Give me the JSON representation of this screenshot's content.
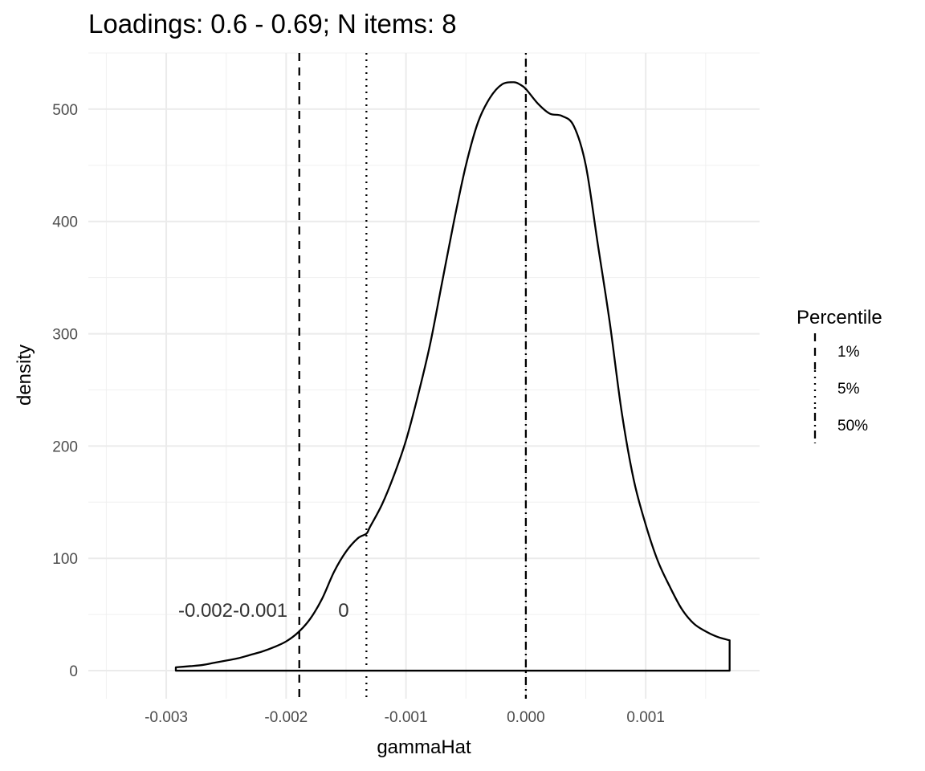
{
  "chart_data": {
    "type": "area",
    "title": "Loadings: 0.6 - 0.69; N items: 8",
    "xlabel": "gammaHat",
    "ylabel": "density",
    "xlim": [
      -0.00365,
      0.00195
    ],
    "ylim": [
      -25,
      550
    ],
    "x_ticks": [
      -0.003,
      -0.002,
      -0.001,
      0.0,
      0.001
    ],
    "x_tick_labels": [
      "-0.003",
      "-0.002",
      "-0.001",
      "0.000",
      "0.001"
    ],
    "y_ticks": [
      0,
      100,
      200,
      300,
      400,
      500
    ],
    "y_tick_labels": [
      "0",
      "100",
      "200",
      "300",
      "400",
      "500"
    ],
    "grid": true,
    "series": [
      {
        "x": [
          -0.00292,
          -0.0028,
          -0.0027,
          -0.0026,
          -0.0025,
          -0.0024,
          -0.0023,
          -0.0022,
          -0.0021,
          -0.002,
          -0.0019,
          -0.0018,
          -0.0017,
          -0.0016,
          -0.0015,
          -0.0014,
          -0.00133,
          -0.0013,
          -0.0012,
          -0.0011,
          -0.001,
          -0.0009,
          -0.0008,
          -0.0007,
          -0.0006,
          -0.0005,
          -0.0004,
          -0.0003,
          -0.0002,
          -0.0001,
          -5e-05,
          0.0,
          0.0001,
          0.0002,
          0.0003,
          0.0004,
          0.0005,
          0.0006,
          0.0007,
          0.0008,
          0.0009,
          0.001,
          0.0011,
          0.0012,
          0.0013,
          0.0014,
          0.0015,
          0.0016,
          0.0017
        ],
        "y": [
          3,
          4,
          5,
          7,
          9,
          11,
          14,
          17,
          21,
          26,
          34,
          46,
          64,
          88,
          106,
          118,
          122,
          128,
          148,
          174,
          205,
          245,
          290,
          345,
          400,
          450,
          488,
          510,
          522,
          524,
          522,
          518,
          505,
          496,
          494,
          485,
          450,
          380,
          310,
          230,
          170,
          130,
          98,
          75,
          55,
          42,
          35,
          30,
          27
        ]
      }
    ],
    "vlines": [
      {
        "x": -0.00189,
        "label": "1%",
        "style": "dashed"
      },
      {
        "x": -0.00133,
        "label": "5%",
        "style": "dotted"
      },
      {
        "x": 0.0,
        "label": "50%",
        "style": "dashdot"
      }
    ],
    "annotations": [
      {
        "text": "-0.002-0.001",
        "x": -0.0029,
        "y": 48
      },
      {
        "text": "0",
        "x": -0.00152,
        "y": 48
      }
    ],
    "legend": {
      "title": "Percentile",
      "position": "right",
      "entries": [
        "1%",
        "5%",
        "50%"
      ]
    }
  }
}
